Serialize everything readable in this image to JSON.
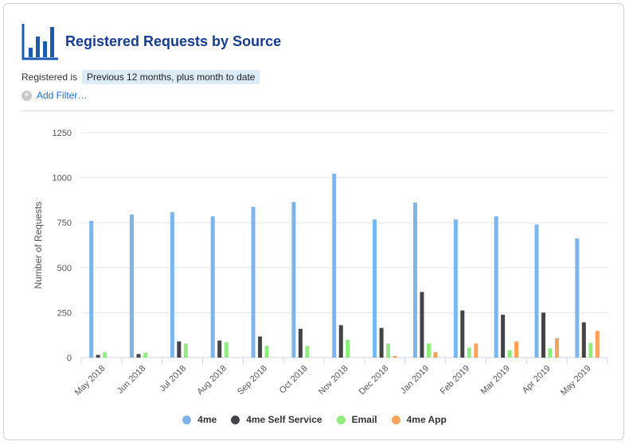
{
  "header": {
    "title": "Registered Requests by Source",
    "logo_icon": "bar-chart-icon",
    "logo_color": "#1b5cb0"
  },
  "filter": {
    "label": "Registered is",
    "value": "Previous 12 months, plus month to date",
    "add_label": "Add Filter…",
    "add_icon": "plus-circle-icon"
  },
  "chart_data": {
    "type": "bar",
    "ylabel": "Number of Requests",
    "ylim": [
      0,
      1250
    ],
    "yticks": [
      "0",
      "250",
      "500",
      "750",
      "1000",
      "1250"
    ],
    "grid": true,
    "legend_position": "bottom",
    "categories": [
      "May 2018",
      "Jun 2018",
      "Jul 2018",
      "Aug 2018",
      "Sep 2018",
      "Oct 2018",
      "Nov 2018",
      "Dec 2018",
      "Jan 2019",
      "Feb 2019",
      "Mar 2019",
      "Apr 2019",
      "May 2019"
    ],
    "series": [
      {
        "name": "4me",
        "color": "#7cb5ec",
        "values": [
          760,
          795,
          808,
          785,
          838,
          865,
          1022,
          768,
          862,
          768,
          785,
          740,
          662
        ]
      },
      {
        "name": "4me Self Service",
        "color": "#434348",
        "values": [
          15,
          20,
          90,
          95,
          117,
          160,
          180,
          165,
          365,
          262,
          238,
          250,
          196
        ]
      },
      {
        "name": "Email",
        "color": "#90ed7d",
        "values": [
          30,
          28,
          78,
          85,
          65,
          65,
          100,
          78,
          78,
          55,
          40,
          52,
          82
        ]
      },
      {
        "name": "4me App",
        "color": "#f7a35c",
        "values": [
          0,
          0,
          0,
          0,
          0,
          0,
          0,
          10,
          30,
          78,
          90,
          108,
          148
        ]
      }
    ]
  }
}
